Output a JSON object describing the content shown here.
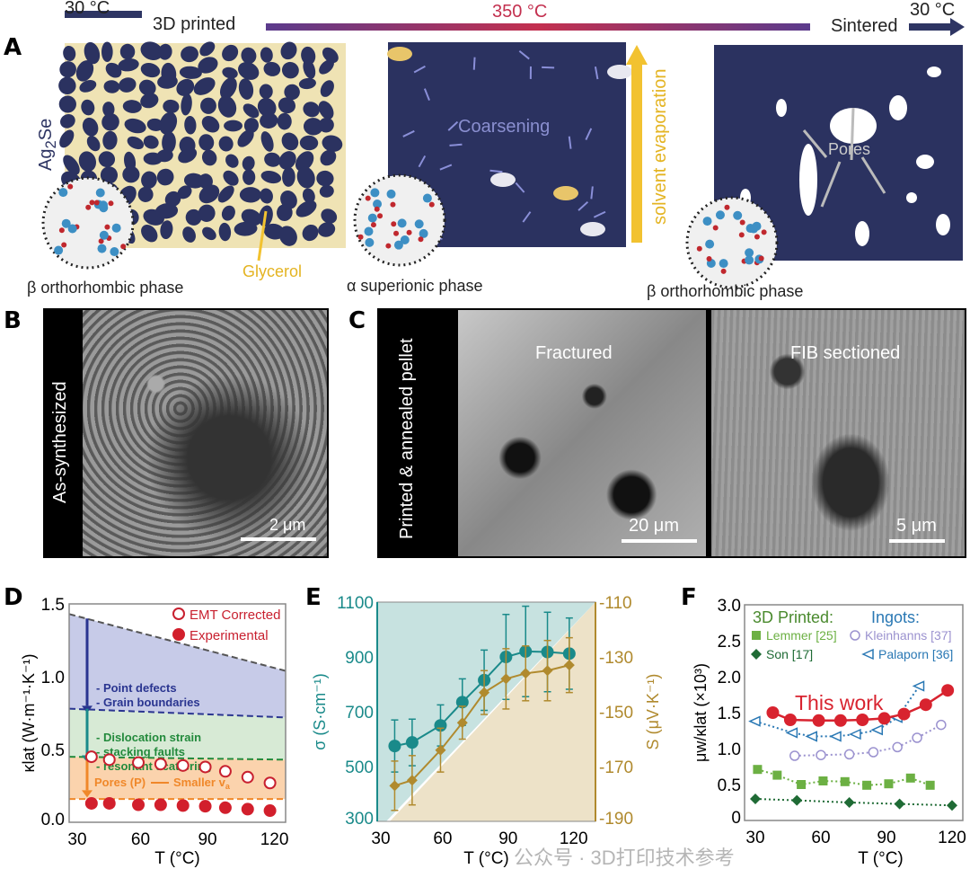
{
  "header": {
    "start_temp": "30 °C",
    "stage1": "3D printed",
    "mid_temp": "350 °C",
    "stage3": "Sintered",
    "end_temp": "30 °C",
    "colors": {
      "navy": "#2e3563",
      "gradient_start": "#5b3b8c",
      "gradient_end": "#c3304f",
      "mid_temp_text": "#c3304f"
    }
  },
  "panelA": {
    "label": "A",
    "material": "Ag",
    "material_sub": "2",
    "material_tail": "Se",
    "glycerol": "Glycerol",
    "coarsening": "Coarsening",
    "solvent": "solvent evaporation",
    "pores": "Pores",
    "phase1": "β  orthorhombic phase",
    "phase2": "α superionic phase",
    "phase3": "β  orthorhombic phase",
    "colors": {
      "particle": "#2b3260",
      "binder": "#efe3b4",
      "arrow": "#f2c230"
    }
  },
  "panelB": {
    "label": "B",
    "side": "As-synthesized",
    "scale": "2 μm"
  },
  "panelC": {
    "label": "C",
    "side": "Printed & annealed pellet",
    "img1": "Fractured",
    "img1_scale": "20 μm",
    "img2": "FIB sectioned",
    "img2_scale": "5 μm"
  },
  "watermark": "公众号 · 3D打印技术参考",
  "chart_data": [
    {
      "panel": "D",
      "type": "scatter",
      "xlabel": "T (°C)",
      "ylabel": "κlat (W·m⁻¹·K⁻¹)",
      "xlim": [
        28,
        125
      ],
      "ylim": [
        0,
        1.5
      ],
      "xticks": [
        "30",
        "60",
        "90",
        "120"
      ],
      "yticks": [
        "0.0",
        "0.5",
        "1.0",
        "1.5"
      ],
      "x": [
        38,
        46,
        59,
        69,
        79,
        89,
        98,
        108,
        118
      ],
      "series": [
        {
          "name": "EMT Corrected",
          "marker": "open-circle",
          "color": "#c8202f",
          "values": [
            0.45,
            0.43,
            0.41,
            0.4,
            0.39,
            0.38,
            0.35,
            0.31,
            0.27
          ]
        },
        {
          "name": "Experimental",
          "marker": "filled-sphere",
          "color": "#d21f2c",
          "values": [
            0.13,
            0.13,
            0.12,
            0.12,
            0.115,
            0.11,
            0.1,
            0.09,
            0.08
          ]
        }
      ],
      "limits": [
        {
          "color": "#555555",
          "from": 1.43,
          "to": 1.04
        },
        {
          "color": "#2a3590",
          "from": 0.78,
          "to": 0.72
        },
        {
          "color": "#238a3c",
          "from": 0.45,
          "to": 0.43
        },
        {
          "color": "#f0882a",
          "from": 0.16,
          "to": 0.16
        }
      ],
      "annotations": {
        "a1": "- Point defects",
        "a2": "- Grain boundaries",
        "a3": "- Dislocation strain",
        "a4": "- stacking faults",
        "a5": "- resonant scattering",
        "a6": "Pores (P)",
        "a7": "Smaller v",
        "a7_sub": "a"
      }
    },
    {
      "panel": "E",
      "type": "line",
      "xlabel": "T (°C)",
      "ylabel_left": "σ (S·cm⁻¹)",
      "ylabel_right": "S (μV·K⁻¹)",
      "xlim": [
        30,
        130
      ],
      "ylim_left": [
        300,
        1100
      ],
      "ylim_right": [
        -190,
        -110
      ],
      "xticks": [
        "30",
        "60",
        "90",
        "120"
      ],
      "yticks_left": [
        "300",
        "500",
        "700",
        "900",
        "1100"
      ],
      "yticks_right": [
        "-190",
        "-170",
        "-150",
        "-130",
        "-110"
      ],
      "x": [
        38,
        46,
        59,
        69,
        79,
        89,
        98,
        108,
        118
      ],
      "series": [
        {
          "name": "σ",
          "axis": "left",
          "color": "#1a8a8a",
          "values": [
            575,
            588,
            650,
            735,
            815,
            900,
            920,
            918,
            912
          ],
          "errors": [
            95,
            85,
            75,
            85,
            110,
            155,
            165,
            145,
            130
          ]
        },
        {
          "name": "S",
          "axis": "right",
          "color": "#b08a2e",
          "values": [
            -177,
            -175,
            -164,
            -154,
            -143,
            -138,
            -136,
            -135,
            -133
          ],
          "errors": [
            9,
            9,
            8,
            6,
            8,
            11,
            10,
            11,
            10
          ]
        }
      ]
    },
    {
      "panel": "F",
      "type": "line",
      "xlabel": "T (°C)",
      "ylabel": "μw/κlat (×10³)",
      "xlim": [
        25,
        125
      ],
      "ylim": [
        0,
        3
      ],
      "xticks": [
        "30",
        "60",
        "90",
        "120"
      ],
      "yticks": [
        "0",
        "0.5",
        "1.0",
        "1.5",
        "2.0",
        "2.5",
        "3.0"
      ],
      "legend_group1": "3D Printed:",
      "legend_group2": "Ingots:",
      "this_work_label": "This work",
      "series": [
        {
          "name": "This work",
          "color": "#d8232f",
          "style": "solid",
          "marker": "sphere",
          "x": [
            38,
            46,
            59,
            69,
            79,
            89,
            98,
            108,
            118
          ],
          "values": [
            1.5,
            1.4,
            1.39,
            1.39,
            1.4,
            1.42,
            1.48,
            1.61,
            1.81
          ]
        },
        {
          "name": "Palaporn [36]",
          "color": "#2a78b4",
          "style": "dotted",
          "marker": "open-triangle",
          "x": [
            30,
            47,
            56,
            67,
            76,
            86,
            95,
            105
          ],
          "values": [
            1.38,
            1.22,
            1.17,
            1.17,
            1.2,
            1.26,
            1.43,
            1.87
          ]
        },
        {
          "name": "Kleinhanns [37]",
          "color": "#9b92cf",
          "style": "dotted",
          "marker": "open-pentagon",
          "x": [
            48,
            60,
            73,
            84,
            95,
            104,
            115
          ],
          "values": [
            0.9,
            0.91,
            0.92,
            0.95,
            1.02,
            1.15,
            1.33
          ]
        },
        {
          "name": "Lemmer [25]",
          "color": "#6cb043",
          "style": "dotted",
          "marker": "square",
          "x": [
            31,
            40,
            51,
            61,
            71,
            81,
            91,
            101,
            110
          ],
          "values": [
            0.71,
            0.63,
            0.5,
            0.55,
            0.54,
            0.49,
            0.51,
            0.59,
            0.49
          ]
        },
        {
          "name": "Son [17]",
          "color": "#1f6b35",
          "style": "dotted",
          "marker": "diamond",
          "x": [
            30,
            49,
            73,
            96,
            120
          ],
          "values": [
            0.3,
            0.28,
            0.25,
            0.23,
            0.21
          ]
        }
      ]
    }
  ]
}
